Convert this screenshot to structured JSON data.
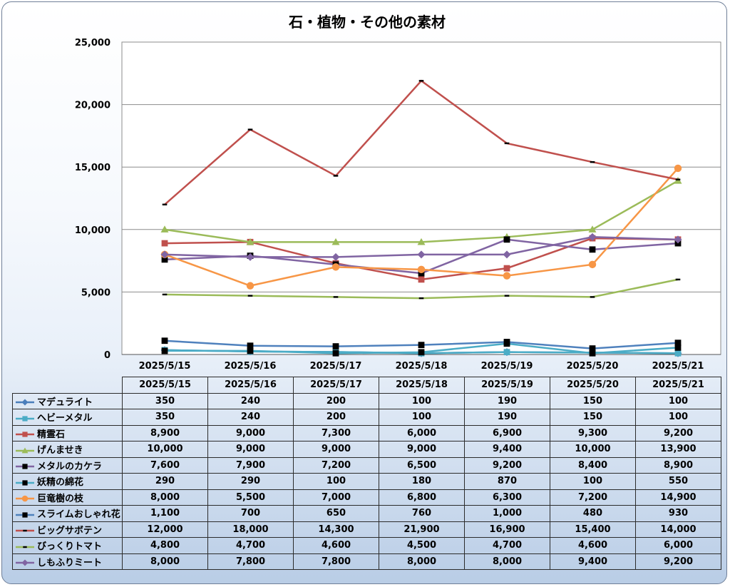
{
  "chart_data": {
    "type": "line",
    "title": "石・植物・その他の素材",
    "xlabel": "",
    "ylabel": "",
    "ylim": [
      0,
      25000
    ],
    "yticks": [
      0,
      5000,
      10000,
      15000,
      20000,
      25000
    ],
    "ytick_labels": [
      "0",
      "5,000",
      "10,000",
      "15,000",
      "20,000",
      "25,000"
    ],
    "grid": true,
    "legend": "data-table-below",
    "categories": [
      "2025/5/15",
      "2025/5/16",
      "2025/5/17",
      "2025/5/18",
      "2025/5/19",
      "2025/5/20",
      "2025/5/21"
    ],
    "series": [
      {
        "name": "マデュライト",
        "color": "#4a7ebb",
        "marker": "diamond",
        "values": [
          350,
          240,
          200,
          100,
          190,
          150,
          100
        ],
        "labels": [
          "350",
          "240",
          "200",
          "100",
          "190",
          "150",
          "100"
        ]
      },
      {
        "name": "ヘビーメタル",
        "color": "#4bacc6",
        "marker": "square",
        "values": [
          350,
          240,
          200,
          100,
          190,
          150,
          100
        ],
        "labels": [
          "350",
          "240",
          "200",
          "100",
          "190",
          "150",
          "100"
        ]
      },
      {
        "name": "精霊石",
        "color": "#c0504d",
        "marker": "square",
        "values": [
          8900,
          9000,
          7300,
          6000,
          6900,
          9300,
          9200
        ],
        "labels": [
          "8,900",
          "9,000",
          "7,300",
          "6,000",
          "6,900",
          "9,300",
          "9,200"
        ]
      },
      {
        "name": "げんませき",
        "color": "#9bbb59",
        "marker": "triangle",
        "values": [
          10000,
          9000,
          9000,
          9000,
          9400,
          10000,
          13900
        ],
        "labels": [
          "10,000",
          "9,000",
          "9,000",
          "9,000",
          "9,400",
          "10,000",
          "13,900"
        ]
      },
      {
        "name": "メタルのカケラ",
        "color": "#8064a2",
        "marker": "blacksquare",
        "values": [
          7600,
          7900,
          7200,
          6500,
          9200,
          8400,
          8900
        ],
        "labels": [
          "7,600",
          "7,900",
          "7,200",
          "6,500",
          "9,200",
          "8,400",
          "8,900"
        ]
      },
      {
        "name": "妖精の綿花",
        "color": "#4bacc6",
        "marker": "blacksquare",
        "values": [
          290,
          290,
          100,
          180,
          870,
          100,
          550
        ],
        "labels": [
          "290",
          "290",
          "100",
          "180",
          "870",
          "100",
          "550"
        ]
      },
      {
        "name": "巨竜樹の枝",
        "color": "#f79646",
        "marker": "circle",
        "values": [
          8000,
          5500,
          7000,
          6800,
          6300,
          7200,
          14900
        ],
        "labels": [
          "8,000",
          "5,500",
          "7,000",
          "6,800",
          "6,300",
          "7,200",
          "14,900"
        ]
      },
      {
        "name": "スライムおしゃれ花",
        "color": "#4f81bd",
        "marker": "blacksquare",
        "values": [
          1100,
          700,
          650,
          760,
          1000,
          480,
          930
        ],
        "labels": [
          "1,100",
          "700",
          "650",
          "760",
          "1,000",
          "480",
          "930"
        ]
      },
      {
        "name": "ビッグサボテン",
        "color": "#c0504d",
        "marker": "dash",
        "values": [
          12000,
          18000,
          14300,
          21900,
          16900,
          15400,
          14000
        ],
        "labels": [
          "12,000",
          "18,000",
          "14,300",
          "21,900",
          "16,900",
          "15,400",
          "14,000"
        ]
      },
      {
        "name": "びっくりトマト",
        "color": "#9bbb59",
        "marker": "dash",
        "values": [
          4800,
          4700,
          4600,
          4500,
          4700,
          4600,
          6000
        ],
        "labels": [
          "4,800",
          "4,700",
          "4,600",
          "4,500",
          "4,700",
          "4,600",
          "6,000"
        ]
      },
      {
        "name": "しもふりミート",
        "color": "#8064a2",
        "marker": "diamond",
        "values": [
          8000,
          7800,
          7800,
          8000,
          8000,
          9400,
          9200
        ],
        "labels": [
          "8,000",
          "7,800",
          "7,800",
          "8,000",
          "8,000",
          "9,400",
          "9,200"
        ]
      }
    ]
  }
}
